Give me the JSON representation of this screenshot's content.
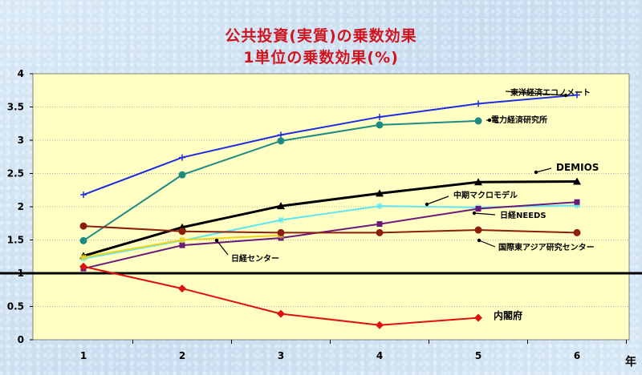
{
  "titles": {
    "line1": "公共投資(実質)の乗数効果",
    "line2": "1単位の乗数効果(%)"
  },
  "chart_data": {
    "type": "line",
    "title": "公共投資(実質)の乗数効果",
    "subtitle": "1単位の乗数効果(%)",
    "xlabel": "年",
    "ylabel": "",
    "x": [
      1,
      2,
      3,
      4,
      5,
      6
    ],
    "ylim": [
      0,
      4
    ],
    "yticks": [
      "0",
      "0.5",
      "1",
      "1.5",
      "2",
      "2.5",
      "3",
      "3.5",
      "4"
    ],
    "xticks": [
      "1",
      "2",
      "3",
      "4",
      "5",
      "6"
    ],
    "reference_line": 1,
    "series": [
      {
        "name": "東洋経済エコノメート",
        "color": "#1f2be0",
        "marker": "plus",
        "values": [
          2.18,
          2.74,
          3.08,
          3.35,
          3.55,
          3.68
        ]
      },
      {
        "name": "電力経済研究所",
        "color": "#1e8a84",
        "marker": "circle",
        "values": [
          1.49,
          2.48,
          2.99,
          3.23,
          3.29,
          null
        ]
      },
      {
        "name": "DEMIOS",
        "color": "#000000",
        "marker": "triangle",
        "width": 3,
        "values": [
          1.26,
          1.69,
          2.01,
          2.2,
          2.37,
          2.38
        ]
      },
      {
        "name": "中期マクロモデル",
        "color": "#5fe5f2",
        "marker": "star",
        "values": [
          1.22,
          1.49,
          1.8,
          2.01,
          1.99,
          2.02
        ]
      },
      {
        "name": "日経NEEDS",
        "color": "#6a1b7a",
        "marker": "square",
        "values": [
          1.07,
          1.42,
          1.53,
          1.74,
          1.97,
          2.07
        ]
      },
      {
        "name": "日経センター",
        "color": "#f0d21a",
        "marker": "star",
        "values": [
          1.24,
          1.5,
          1.57,
          null,
          null,
          null
        ]
      },
      {
        "name": "国際東アジア研究センター",
        "color": "#8c1e0e",
        "marker": "circle",
        "values": [
          1.71,
          1.63,
          1.61,
          1.61,
          1.65,
          1.61
        ]
      },
      {
        "name": "内閣府",
        "color": "#e01010",
        "marker": "diamond",
        "values": [
          1.1,
          0.77,
          0.39,
          0.22,
          0.33,
          null
        ]
      }
    ]
  }
}
